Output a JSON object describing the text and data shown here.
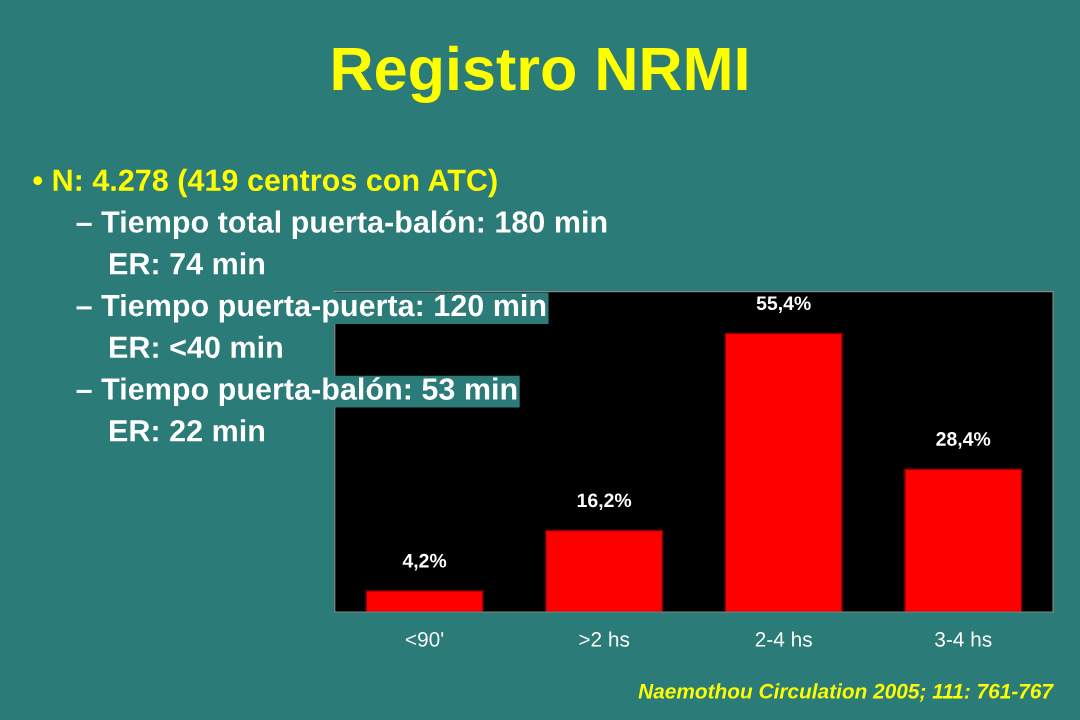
{
  "chart_data": {
    "type": "bar",
    "title": "Registro NRMI",
    "categories": [
      "<90'",
      ">2 hs",
      "2-4 hs",
      "3-4 hs"
    ],
    "values": [
      4.2,
      16.2,
      55.4,
      28.4
    ],
    "value_labels": [
      "4,2%",
      "16,2%",
      "55,4%",
      "28,4%"
    ],
    "color": "#ff0000",
    "annotations": [
      "• N: 4.278 (419 centros con ATC)",
      "– Tiempo total puerta-balón: 180 min",
      "ER: 74 min",
      "– Tiempo puerta-puerta: 120 min",
      "ER: <40 min",
      "– Tiempo puerta-balón: 53 min",
      "ER: 22 min",
      "Naemothou Circulation 2005; 111: 761-767"
    ]
  }
}
